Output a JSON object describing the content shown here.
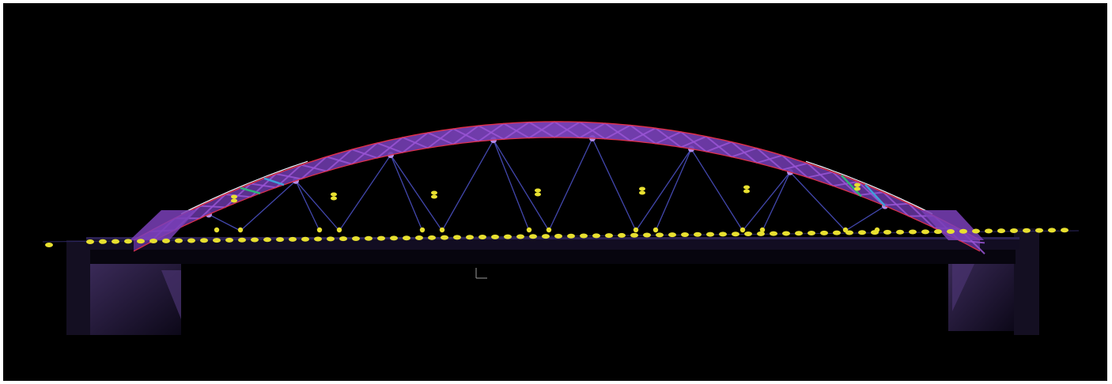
{
  "colors": {
    "background": "#000000",
    "frame": "#ffffff",
    "arch_primary": "#7a3fb8",
    "arch_highlight": "#9a55d6",
    "arch_edge_red": "#e0304a",
    "arch_edge_white": "#f0f0ff",
    "arch_accent_green": "#2fb37a",
    "arch_accent_cyan": "#3fa0d8",
    "hanger": "#4a4fc0",
    "deck": "#1a1430",
    "pier": "#2a1d40",
    "node_marker": "#e8e030"
  },
  "icons": {
    "origin_marker": "axis-origin-icon"
  }
}
